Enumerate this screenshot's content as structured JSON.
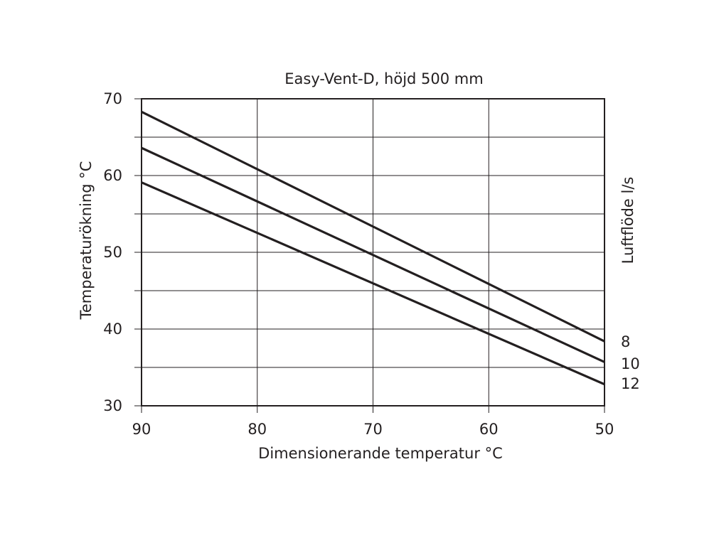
{
  "chart_data": {
    "type": "line",
    "title": "Easy-Vent-D, höjd 500 mm",
    "xlabel": "Dimensionerande temperatur °C",
    "ylabel": "Temperaturökning °C",
    "y2label": "Luftflöde l/s",
    "xlim": [
      90,
      50
    ],
    "ylim": [
      30,
      70
    ],
    "x_reversed": true,
    "grid": true,
    "x_ticks": [
      "90",
      "80",
      "70",
      "60",
      "50"
    ],
    "y_ticks": [
      "30",
      "40",
      "50",
      "60",
      "70"
    ],
    "series": [
      {
        "name": "8",
        "x": [
          90,
          50
        ],
        "y": [
          68.3,
          38.4
        ]
      },
      {
        "name": "10",
        "x": [
          90,
          50
        ],
        "y": [
          63.6,
          35.7
        ]
      },
      {
        "name": "12",
        "x": [
          90,
          50
        ],
        "y": [
          59.1,
          32.8
        ]
      }
    ],
    "colors": {
      "line": "#231f20",
      "grid": "#231f20",
      "text": "#231f20"
    }
  }
}
